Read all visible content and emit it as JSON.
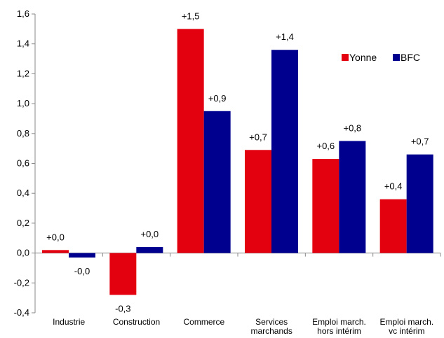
{
  "chart_data": {
    "type": "bar",
    "categories": [
      [
        "Industrie"
      ],
      [
        "Construction"
      ],
      [
        "Commerce"
      ],
      [
        "Services",
        "marchands"
      ],
      [
        "Emploi march.",
        "hors intérim"
      ],
      [
        "Emploi march.",
        "vc intérim"
      ]
    ],
    "series": [
      {
        "name": "Yonne",
        "color": "#e3000f",
        "values": [
          0.02,
          -0.28,
          1.5,
          0.69,
          0.63,
          0.36
        ],
        "labels": [
          "+0,0",
          "-0,3",
          "+1,5",
          "+0,7",
          "+0,6",
          "+0,4"
        ]
      },
      {
        "name": "BFC",
        "color": "#00008f",
        "values": [
          -0.03,
          0.04,
          0.95,
          1.36,
          0.75,
          0.66
        ],
        "labels": [
          "-0,0",
          "+0,0",
          "+0,9",
          "+1,4",
          "+0,8",
          "+0,7"
        ]
      }
    ],
    "ylim": [
      -0.4,
      1.6
    ],
    "yticks": [
      -0.4,
      -0.2,
      0.0,
      0.2,
      0.4,
      0.6,
      0.8,
      1.0,
      1.2,
      1.4,
      1.6
    ],
    "ytick_labels": [
      "-0,4",
      "-0,2",
      "0,0",
      "0,2",
      "0,4",
      "0,6",
      "0,8",
      "1,0",
      "1,2",
      "1,4",
      "1,6"
    ],
    "legend_position": "top-right",
    "grid": false,
    "title": "",
    "xlabel": "",
    "ylabel": ""
  }
}
